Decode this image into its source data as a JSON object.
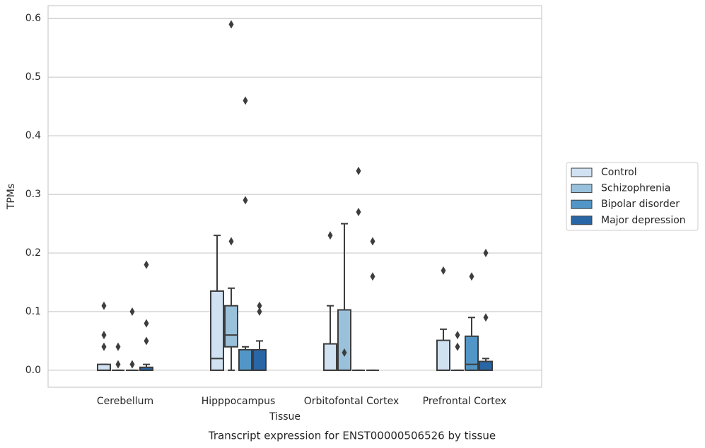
{
  "chart_data": {
    "type": "box",
    "title": "Transcript expression for ENST00000506526 by tissue",
    "x_label": "Tissue",
    "y_label": "TPMs",
    "categories": [
      "Cerebellum",
      "Hipppocampus",
      "Orbitofontal Cortex",
      "Prefrontal Cortex"
    ],
    "ylim": [
      -0.029,
      0.622
    ],
    "yticks": [
      {
        "value": 0,
        "label": "0.0"
      },
      0.1,
      0.2,
      0.3,
      0.4,
      0.5,
      0.6
    ],
    "grid": true,
    "legend": "right",
    "series": [
      {
        "name": "Control",
        "color": "#d0e1f2",
        "boxes": [
          {
            "min": 0,
            "q1": 0,
            "median": 0,
            "q3": 0.01,
            "max": 0.01,
            "outliers": [
              0.11,
              0.06,
              0.04
            ]
          },
          {
            "min": 0,
            "q1": 0,
            "median": 0.02,
            "q3": 0.135,
            "max": 0.23,
            "outliers": []
          },
          {
            "min": 0,
            "q1": 0,
            "median": 0,
            "q3": 0.045,
            "max": 0.11,
            "outliers": [
              0.23
            ]
          },
          {
            "min": 0,
            "q1": 0,
            "median": 0,
            "q3": 0.051,
            "max": 0.07,
            "outliers": [
              0.17
            ]
          }
        ]
      },
      {
        "name": "Schizophrenia",
        "color": "#9ac1dc",
        "boxes": [
          {
            "min": 0,
            "q1": 0,
            "median": 0,
            "q3": 0,
            "max": 0,
            "outliers": [
              0.04,
              0.01
            ]
          },
          {
            "min": 0,
            "q1": 0.04,
            "median": 0.06,
            "q3": 0.11,
            "max": 0.14,
            "outliers": [
              0.59,
              0.22
            ]
          },
          {
            "min": 0,
            "q1": 0,
            "median": 0,
            "q3": 0.103,
            "max": 0.25,
            "outliers": [
              0.03
            ]
          },
          {
            "min": 0,
            "q1": 0,
            "median": 0,
            "q3": 0,
            "max": 0,
            "outliers": [
              0.06,
              0.04
            ]
          }
        ]
      },
      {
        "name": "Bipolar disorder",
        "color": "#5296c7",
        "boxes": [
          {
            "min": 0,
            "q1": 0,
            "median": 0,
            "q3": 0,
            "max": 0,
            "outliers": [
              0.1,
              0.01
            ]
          },
          {
            "min": 0,
            "q1": 0,
            "median": 0,
            "q3": 0.035,
            "max": 0.04,
            "outliers": [
              0.46,
              0.29
            ]
          },
          {
            "min": 0,
            "q1": 0,
            "median": 0,
            "q3": 0,
            "max": 0,
            "outliers": [
              0.34,
              0.27
            ]
          },
          {
            "min": 0,
            "q1": 0,
            "median": 0.01,
            "q3": 0.058,
            "max": 0.09,
            "outliers": [
              0.16
            ]
          }
        ]
      },
      {
        "name": "Major depression",
        "color": "#2866a6",
        "boxes": [
          {
            "min": 0,
            "q1": 0,
            "median": 0,
            "q3": 0.005,
            "max": 0.01,
            "outliers": [
              0.18,
              0.08,
              0.05
            ]
          },
          {
            "min": 0,
            "q1": 0,
            "median": 0,
            "q3": 0.035,
            "max": 0.05,
            "outliers": [
              0.11,
              0.1
            ]
          },
          {
            "min": 0,
            "q1": 0,
            "median": 0,
            "q3": 0,
            "max": 0,
            "outliers": [
              0.22,
              0.16
            ]
          },
          {
            "min": 0,
            "q1": 0,
            "median": 0,
            "q3": 0.015,
            "max": 0.02,
            "outliers": [
              0.2,
              0.09
            ]
          }
        ]
      }
    ]
  }
}
